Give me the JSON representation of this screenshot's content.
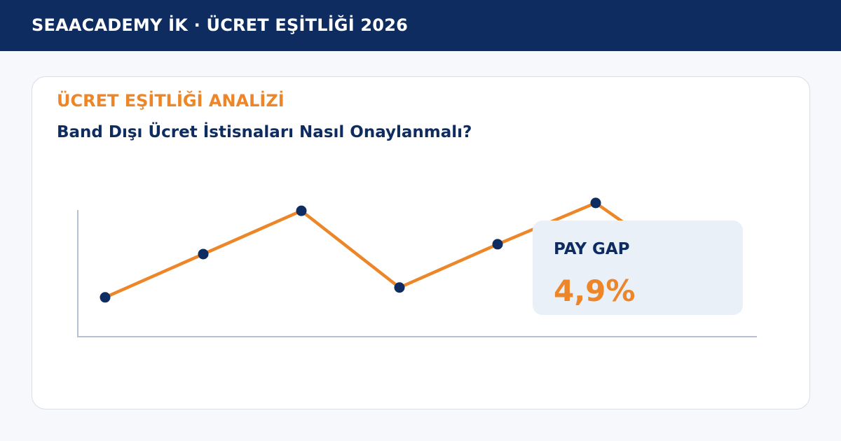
{
  "header": {
    "title": "SEAACADEMY İK · ÜCRET EŞİTLİĞİ 2026"
  },
  "card": {
    "eyebrow": "ÜCRET EŞİTLİĞİ ANALİZİ",
    "headline": "Band Dışı Ücret İstisnaları Nasıl Onaylanmalı?"
  },
  "stat": {
    "label": "PAY GAP",
    "value": "4,9%"
  },
  "colors": {
    "header_bg": "#0e2c5f",
    "accent": "#ed8628",
    "navy": "#0e2c5f",
    "axis": "#b7c0cf",
    "stat_bg": "#e9f0f8"
  },
  "chart_data": {
    "type": "line",
    "x": [
      1,
      2,
      3,
      4,
      5,
      6,
      7
    ],
    "values": [
      2.0,
      4.2,
      6.4,
      2.5,
      4.7,
      6.8,
      3.3
    ],
    "ylim": [
      0,
      10
    ],
    "grid": false,
    "line_color": "#ed8628",
    "marker_color": "#0e2c5f"
  }
}
